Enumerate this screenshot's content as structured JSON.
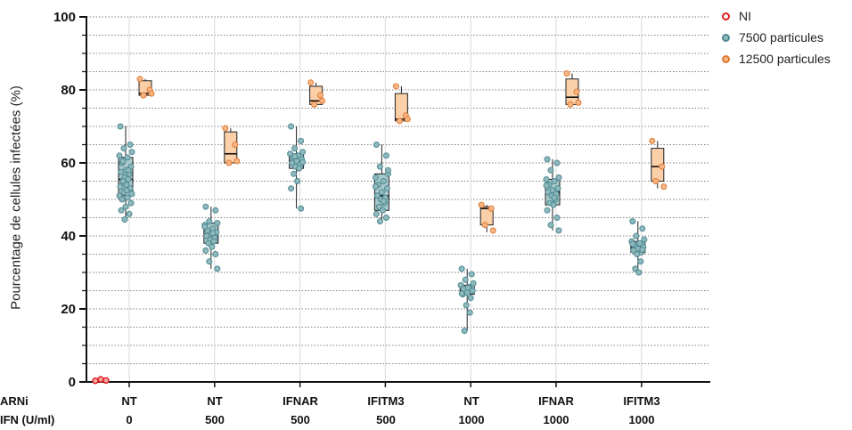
{
  "chart_data": {
    "type": "boxplot",
    "title": "",
    "ylabel": "Pourcentage de cellules infectées (%)",
    "ylim": [
      0,
      100
    ],
    "yticks": [
      0,
      20,
      40,
      60,
      80,
      100
    ],
    "grid": {
      "horizontal_minor_step": 5,
      "vertical_category_lines": true
    },
    "row_labels": {
      "arni": "ARNi",
      "ifn": "IFN (U/ml)"
    },
    "categories": [
      {
        "arni": "NT",
        "ifn": "0"
      },
      {
        "arni": "NT",
        "ifn": "500"
      },
      {
        "arni": "IFNAR",
        "ifn": "500"
      },
      {
        "arni": "IFITM3",
        "ifn": "500"
      },
      {
        "arni": "NT",
        "ifn": "1000"
      },
      {
        "arni": "IFNAR",
        "ifn": "1000"
      },
      {
        "arni": "IFITM3",
        "ifn": "1000"
      }
    ],
    "legend": {
      "position": "top-right",
      "entries": [
        {
          "label": "NI",
          "color": "#e02020"
        },
        {
          "label": "7500 particules",
          "color": "#5f9ea6"
        },
        {
          "label": "12500 particules",
          "color": "#f08a3c"
        }
      ]
    },
    "colors": {
      "ni": "#e02020",
      "p7500_fill": "#a9c9cc",
      "p7500_point": "#8fb9bd",
      "p7500_edge": "#4e8a92",
      "p12500_fill": "#fbd0a8",
      "p12500_point": "#f6b687",
      "p12500_edge": "#e07a30"
    },
    "series": {
      "NI": {
        "points": [
          0.3,
          0.7,
          0.4
        ]
      },
      "7500 particules": [
        {
          "min": 44.5,
          "q1": 51,
          "median": 55.5,
          "q3": 61.5,
          "max": 70,
          "points": [
            70,
            65,
            64,
            63,
            62,
            61.5,
            60,
            59,
            58,
            57.5,
            57,
            56,
            55.5,
            55,
            54,
            53.5,
            53,
            52,
            51.5,
            51,
            50.5,
            50,
            49,
            48,
            47,
            46,
            44.5,
            58,
            60.5,
            52.5
          ]
        },
        {
          "min": 31,
          "q1": 38,
          "median": 40.5,
          "q3": 43.5,
          "max": 48,
          "points": [
            48,
            47,
            44,
            43.5,
            43,
            42,
            41.5,
            41,
            40.5,
            40,
            39.5,
            39,
            38.5,
            38,
            37,
            36,
            35,
            33,
            31,
            42.5,
            40.8
          ]
        },
        {
          "min": 47.5,
          "q1": 58.5,
          "median": 60.5,
          "q3": 62.5,
          "max": 70,
          "points": [
            70,
            66,
            64,
            63,
            62.5,
            62,
            61.5,
            61,
            60.5,
            60,
            59.5,
            59,
            58.5,
            57,
            55,
            53,
            47.5,
            61.8,
            60.2
          ]
        },
        {
          "min": 44,
          "q1": 47,
          "median": 51,
          "q3": 57,
          "max": 65,
          "points": [
            65,
            62,
            59,
            57,
            56,
            55,
            54,
            53,
            52,
            51,
            50.5,
            50,
            49,
            48,
            47,
            46,
            45,
            44,
            58,
            53.5,
            49.5
          ]
        },
        {
          "min": 14,
          "q1": 24,
          "median": 25,
          "q3": 26.5,
          "max": 31,
          "points": [
            31,
            29.5,
            28,
            27,
            26.5,
            26,
            25.5,
            25,
            24.5,
            24,
            23,
            21,
            19,
            14,
            25.8,
            24.2
          ]
        },
        {
          "min": 41.5,
          "q1": 48.5,
          "median": 52,
          "q3": 55.5,
          "max": 61,
          "points": [
            61,
            60,
            58,
            56,
            55.5,
            55,
            54,
            53,
            52.5,
            52,
            51.5,
            51,
            50,
            49,
            48.5,
            47,
            45,
            43,
            41.5,
            53.8,
            50.5
          ]
        },
        {
          "min": 30,
          "q1": 35.5,
          "median": 37,
          "q3": 38.5,
          "max": 44,
          "points": [
            44,
            42,
            40,
            39,
            38.5,
            38,
            37.5,
            37,
            36.5,
            36,
            35.5,
            35,
            33,
            31,
            30,
            37.8,
            36.2
          ]
        }
      ],
      "12500 particules": [
        {
          "min": 78.5,
          "q1": 78.5,
          "median": 79,
          "q3": 82.5,
          "max": 83,
          "points": [
            83,
            80,
            78.5,
            79
          ]
        },
        {
          "min": 60,
          "q1": 60,
          "median": 62.5,
          "q3": 68.5,
          "max": 69.5,
          "points": [
            69.5,
            65,
            60,
            60.5
          ]
        },
        {
          "min": 76,
          "q1": 76,
          "median": 77,
          "q3": 81,
          "max": 82,
          "points": [
            82,
            78.5,
            76,
            77
          ]
        },
        {
          "min": 71,
          "q1": 71.5,
          "median": 72,
          "q3": 79,
          "max": 81,
          "points": [
            81,
            73,
            71.5,
            72
          ]
        },
        {
          "min": 41,
          "q1": 43,
          "median": 47.5,
          "q3": 48,
          "max": 48.5,
          "points": [
            48.5,
            47.5,
            43,
            41.5
          ]
        },
        {
          "min": 75.5,
          "q1": 76,
          "median": 78,
          "q3": 83,
          "max": 84.5,
          "points": [
            84.5,
            79.5,
            76,
            76.5
          ]
        },
        {
          "min": 53,
          "q1": 55,
          "median": 59,
          "q3": 64,
          "max": 66,
          "points": [
            66,
            59,
            55,
            53.5
          ]
        }
      ]
    }
  }
}
